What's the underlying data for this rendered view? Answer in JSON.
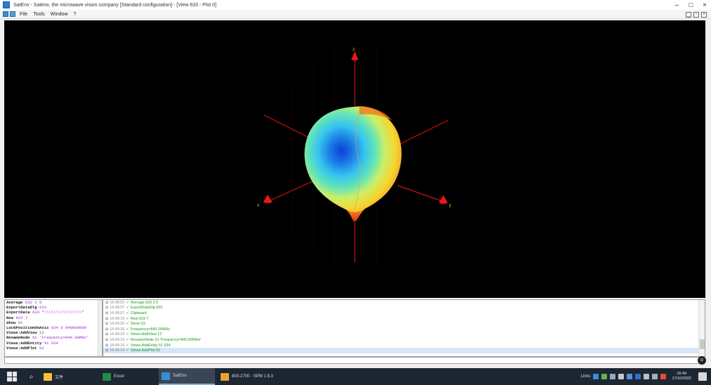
{
  "window": {
    "title": "SatEnv - Satimo, the microwave vision company [Standard configuration] - [View 633 - Plot 0]",
    "controls": {
      "minimize": "–",
      "maximize": "□",
      "close": "×"
    },
    "mdi_controls": {
      "minimize": "_",
      "restore": "▫",
      "close": "×"
    }
  },
  "menu": {
    "items": [
      "File",
      "Tools",
      "Window",
      "?"
    ]
  },
  "viewport": {
    "background": "#000000",
    "axis_color": "#cc1111",
    "axis_labels": {
      "z": "z",
      "x": "x",
      "y": "y"
    }
  },
  "script_log": {
    "lines": [
      {
        "cmd": "Average",
        "arg": "632 1 0"
      },
      {
        "cmd": "ExportDataDlg",
        "arg": "633"
      },
      {
        "cmd": "ExportData",
        "arg": "633 \"\\\\\\\\\\\\\\\\\\\\\\\\\\\\\\\\\""
      },
      {
        "cmd": "New",
        "arg": "623 7"
      },
      {
        "cmd": "Show",
        "arg": "%1"
      },
      {
        "cmd": "LockPositionOnAxis",
        "arg": "634 0 840000000"
      },
      {
        "cmd": "Views:AddView",
        "arg": "12"
      },
      {
        "cmd": "RenameNode",
        "arg": "%1 'Frequency=840.00MHz'"
      },
      {
        "cmd": "Views:AddEntity",
        "arg": "%1 634"
      },
      {
        "cmd": "Views:AddPlot",
        "arg": "%1"
      }
    ]
  },
  "event_log": {
    "rows": [
      {
        "time": "16:48:52",
        "text": "Average 632 1 0",
        "selected": false
      },
      {
        "time": "16:48:57",
        "text": "ExportDataDlg 633",
        "selected": false
      },
      {
        "time": "16:48:57",
        "text": "Clipboard",
        "selected": false
      },
      {
        "time": "16:49:16",
        "text": "New 623 7",
        "selected": false
      },
      {
        "time": "16:49:20",
        "text": "Show 53",
        "selected": false
      },
      {
        "time": "16:49:20",
        "text": "Frequency=840.00MHz",
        "selected": false
      },
      {
        "time": "16:49:23",
        "text": "Views:AddView 12",
        "selected": false
      },
      {
        "time": "16:49:23",
        "text": "RenameNode 51 'Frequency=840.00MHz'",
        "selected": false
      },
      {
        "time": "16:49:23",
        "text": "Views:AddEntity 51 634",
        "selected": false
      },
      {
        "time": "16:49:24",
        "text": "Views:AddPlot 52",
        "selected": true
      }
    ]
  },
  "command_button": "⊙",
  "taskbar": {
    "search_icon": "⌕",
    "apps": [
      {
        "label": "文件",
        "icon_color": "#f2c230"
      },
      {
        "label": "Excel",
        "icon_color": "#1f8a4c"
      },
      {
        "label": "SatEnv",
        "icon_color": "#3a8ed0"
      },
      {
        "label": "800-2700 - SPM 1.9.3",
        "icon_color": "#e6a230"
      }
    ],
    "tray_label": "Links",
    "clock_time": "16:49",
    "clock_date": "17/10/2022"
  }
}
